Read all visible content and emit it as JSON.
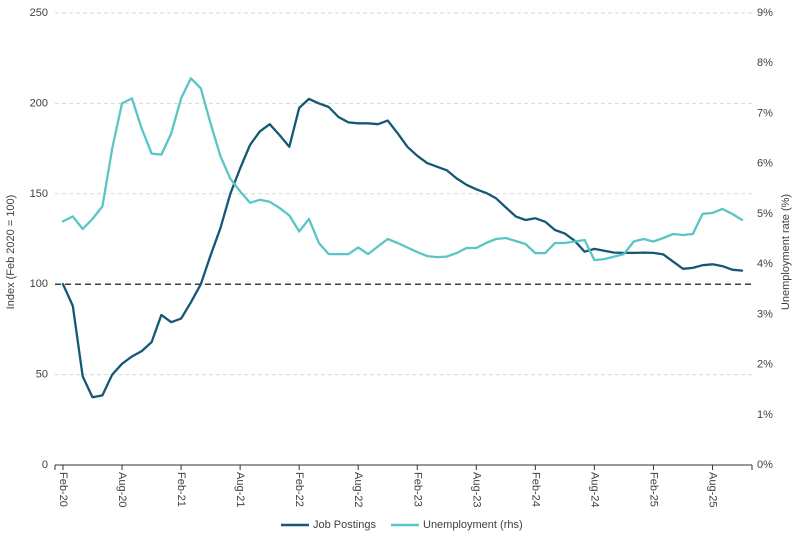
{
  "chart_data": {
    "type": "line",
    "title": "",
    "legend_position": "bottom-center",
    "grid": "horizontal-dashed",
    "grid_color": "#d9d9d9",
    "axis_line_color": "#333333",
    "text_color": "#404040",
    "months": [
      "Feb-20",
      "Mar-20",
      "Apr-20",
      "May-20",
      "Jun-20",
      "Jul-20",
      "Aug-20",
      "Sep-20",
      "Oct-20",
      "Nov-20",
      "Dec-20",
      "Jan-21",
      "Feb-21",
      "Mar-21",
      "Apr-21",
      "May-21",
      "Jun-21",
      "Jul-21",
      "Aug-21",
      "Sep-21",
      "Oct-21",
      "Nov-21",
      "Dec-21",
      "Jan-22",
      "Feb-22",
      "Mar-22",
      "Apr-22",
      "May-22",
      "Jun-22",
      "Jul-22",
      "Aug-22",
      "Sep-22",
      "Oct-22",
      "Nov-22",
      "Dec-22",
      "Jan-23",
      "Feb-23",
      "Mar-23",
      "Apr-23",
      "May-23",
      "Jun-23",
      "Jul-23",
      "Aug-23",
      "Sep-23",
      "Oct-23",
      "Nov-23",
      "Dec-23",
      "Jan-24",
      "Feb-24",
      "Mar-24",
      "Apr-24",
      "May-24",
      "Jun-24",
      "Jul-24",
      "Aug-24",
      "Sep-24",
      "Oct-24",
      "Nov-24",
      "Dec-24",
      "Jan-25",
      "Feb-25",
      "Mar-25",
      "Apr-25",
      "May-25",
      "Jun-25",
      "Jul-25",
      "Aug-25",
      "Sep-25",
      "Oct-25",
      "Nov-25"
    ],
    "x_tick_labels": [
      "Feb-20",
      "Aug-20",
      "Feb-21",
      "Aug-21",
      "Feb-22",
      "Aug-22",
      "Feb-23",
      "Aug-23",
      "Feb-24",
      "Aug-24",
      "Feb-25",
      "Aug-25"
    ],
    "left_axis": {
      "title": "Index (Feb 2020 = 100)",
      "min": 0,
      "max": 250,
      "ticks": [
        0,
        50,
        100,
        150,
        200,
        250
      ]
    },
    "right_axis": {
      "title": "Unemployment rate (%)",
      "min": 0,
      "max": 9,
      "ticks": [
        "0%",
        "1%",
        "2%",
        "3%",
        "4%",
        "5%",
        "6%",
        "7%",
        "8%",
        "9%"
      ]
    },
    "reference_line": {
      "axis": "left",
      "value": 100,
      "color": "#000000",
      "style": "dashed"
    },
    "series": [
      {
        "name": "Job Postings",
        "axis": "left",
        "color": "#145876",
        "values": [
          100,
          88,
          49,
          37.5,
          38.5,
          50,
          56,
          60,
          63,
          68,
          83,
          79,
          81,
          90,
          100,
          116,
          131,
          150,
          164,
          177,
          184.5,
          188.5,
          182.5,
          176,
          197.5,
          202.5,
          200,
          198,
          192.5,
          189.5,
          189,
          189,
          188.5,
          190.5,
          183.5,
          176,
          171,
          167,
          165,
          163,
          158.5,
          155,
          152.5,
          150.5,
          147.5,
          142.5,
          137.5,
          135.5,
          136.5,
          134.5,
          130,
          128,
          124,
          118,
          119.5,
          118.5,
          117.5,
          117.3,
          117.3,
          117.5,
          117.3,
          116.5,
          112.5,
          108.5,
          109,
          110.5,
          111,
          110,
          108,
          107.5
        ]
      },
      {
        "name": "Unemployment (rhs)",
        "axis": "right",
        "color": "#5ac5c6",
        "values": [
          4.85,
          4.95,
          4.7,
          4.9,
          5.15,
          6.3,
          7.2,
          7.3,
          6.7,
          6.2,
          6.18,
          6.6,
          7.3,
          7.7,
          7.5,
          6.8,
          6.15,
          5.7,
          5.45,
          5.22,
          5.28,
          5.24,
          5.12,
          4.97,
          4.65,
          4.9,
          4.42,
          4.2,
          4.2,
          4.2,
          4.33,
          4.2,
          4.35,
          4.5,
          4.42,
          4.33,
          4.24,
          4.16,
          4.14,
          4.15,
          4.22,
          4.32,
          4.32,
          4.42,
          4.5,
          4.52,
          4.46,
          4.4,
          4.22,
          4.22,
          4.42,
          4.42,
          4.45,
          4.48,
          4.08,
          4.1,
          4.15,
          4.2,
          4.45,
          4.5,
          4.45,
          4.52,
          4.6,
          4.58,
          4.6,
          5.0,
          5.02,
          5.1,
          5.0,
          4.88
        ]
      }
    ]
  },
  "legend": {
    "items": [
      {
        "label": "Job Postings"
      },
      {
        "label": "Unemployment (rhs)"
      }
    ]
  }
}
